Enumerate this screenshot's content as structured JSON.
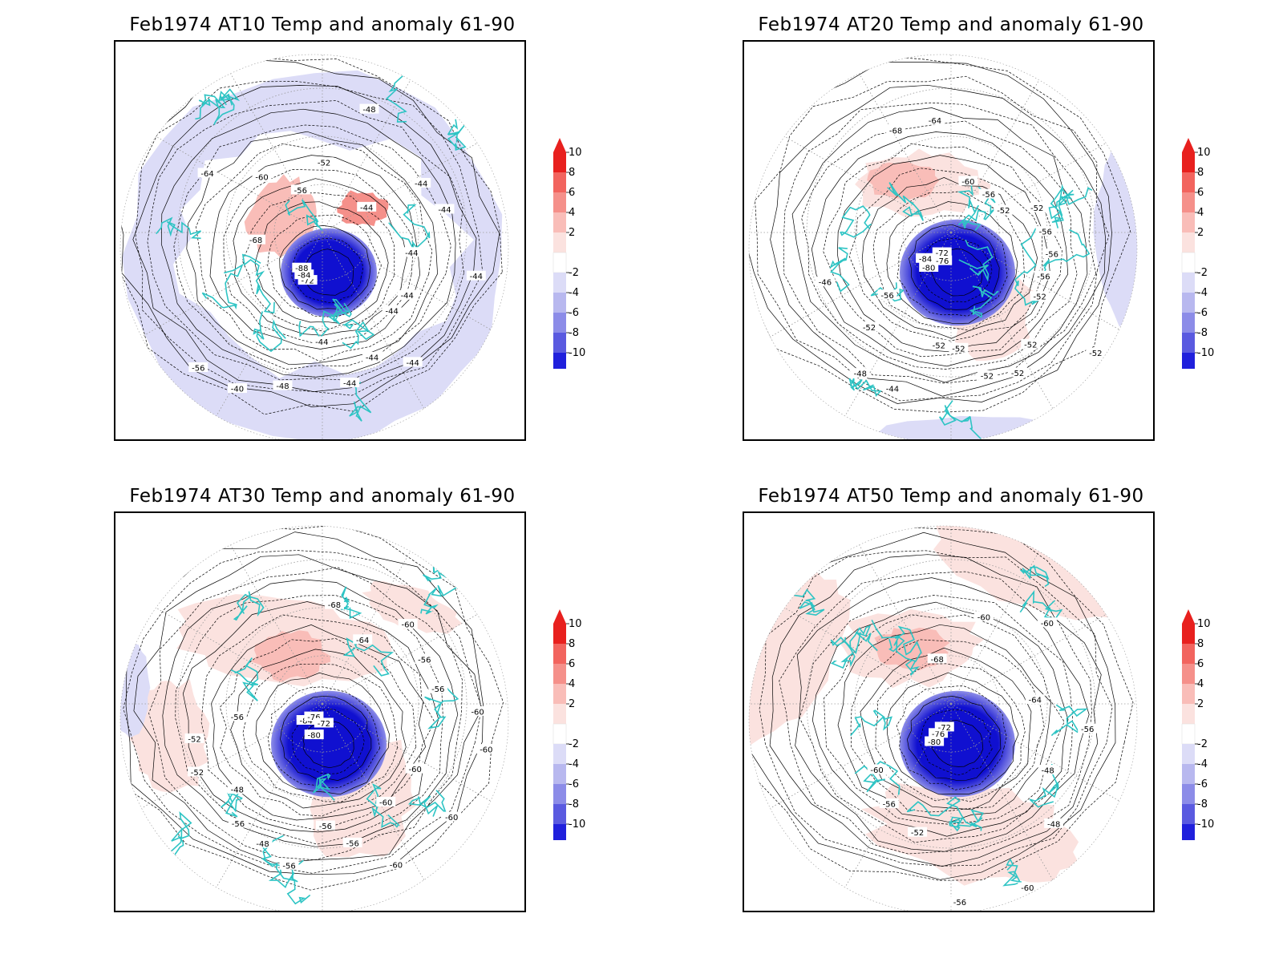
{
  "panels": [
    {
      "title": "Feb1974 AT10 Temp and anomaly 61-90",
      "contour_labels": [
        "-44",
        "-44",
        "-44",
        "-44",
        "-44",
        "-44",
        "-48",
        "-40",
        "-56",
        "-72",
        "-84",
        "-88",
        "-68",
        "-64",
        "-60",
        "-56",
        "-52",
        "-48",
        "-44",
        "-44",
        "-44",
        "-44",
        "-44"
      ],
      "anomaly_pattern": "weak-cold-ring"
    },
    {
      "title": "Feb1974 AT20 Temp and anomaly 61-90",
      "contour_labels": [
        "-52",
        "-52",
        "-52",
        "-52",
        "-52",
        "-52",
        "-52",
        "-44",
        "-48",
        "-52",
        "-56",
        "-46",
        "-80",
        "-84",
        "-76",
        "-72",
        "-68",
        "-64",
        "-60",
        "-56",
        "-52",
        "-52",
        "-56",
        "-56",
        "-56"
      ],
      "anomaly_pattern": "warm-patches"
    },
    {
      "title": "Feb1974 AT30 Temp and anomaly 61-90",
      "contour_labels": [
        "-60",
        "-60",
        "-60",
        "-60",
        "-56",
        "-56",
        "-56",
        "-48",
        "-56",
        "-48",
        "-52",
        "-52",
        "-56",
        "-80",
        "-84",
        "-76",
        "-72",
        "-68",
        "-64",
        "-60",
        "-56",
        "-56",
        "-60",
        "-60"
      ],
      "anomaly_pattern": "warm-arc"
    },
    {
      "title": "Feb1974 AT50 Temp and anomaly 61-90",
      "contour_labels": [
        "-48",
        "-48",
        "-60",
        "-56",
        "-52",
        "-56",
        "-60",
        "-80",
        "-76",
        "-72",
        "-68",
        "-60",
        "-60",
        "-64",
        "-56"
      ],
      "anomaly_pattern": "warm-broad"
    }
  ],
  "colorbar": {
    "ticks": [
      "10",
      "8",
      "6",
      "4",
      "2",
      "-2",
      "-4",
      "-6",
      "-8",
      "-10"
    ],
    "colors": [
      "#e8201e",
      "#f2645e",
      "#f5908a",
      "#f9bdb8",
      "#fbe2df",
      "#dcdcf7",
      "#b8b8ef",
      "#8c8ce8",
      "#5a5ae0",
      "#2020dc"
    ],
    "top_arrow_color": "#e8201e",
    "bottom_arrow_color": "#2020e0",
    "neutral_color": "#ffffff"
  },
  "map_colors": {
    "coastline": "#2ec4c4",
    "contour": "#000000",
    "grid": "#9a9a9a",
    "polar_vortex": "#1010d0"
  }
}
